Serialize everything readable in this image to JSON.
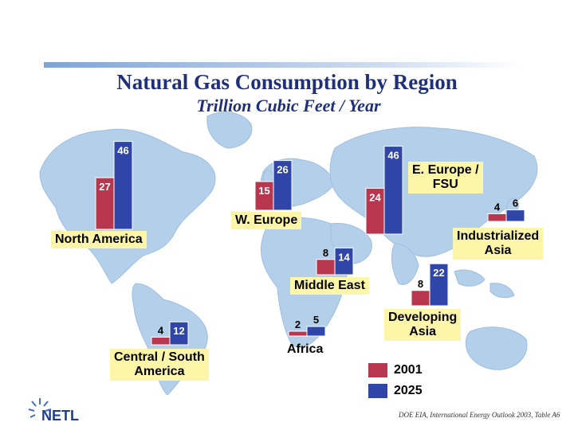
{
  "title": "Natural Gas Consumption by Region",
  "subtitle": "Trillion Cubic Feet / Year",
  "colors": {
    "y2001": "#b8374f",
    "y2025": "#2f45a8",
    "label_bg": "#fdf6a8",
    "title": "#1f2f7a",
    "map": "#b3cfea"
  },
  "chart_data": {
    "type": "bar",
    "title": "Natural Gas Consumption by Region",
    "subtitle": "Trillion Cubic Feet / Year",
    "series_names": [
      "2001",
      "2025"
    ],
    "regions": [
      {
        "label": "North America",
        "v2001": 27,
        "v2025": 46,
        "v2001_label": "27",
        "v2025_label": "46"
      },
      {
        "label": "W. Europe",
        "v2001": 15,
        "v2025": 26,
        "v2001_label": "15",
        "v2025_label": "26"
      },
      {
        "label": "E. Europe / FSU",
        "v2001": 24,
        "v2025": 46,
        "v2001_label": "24",
        "v2025_label": "46"
      },
      {
        "label": "Industrialized Asia",
        "v2001": 4,
        "v2025": 6,
        "v2001_label": "4",
        "v2025_label": "6"
      },
      {
        "label": "Middle East",
        "v2001": 8,
        "v2025": 14,
        "v2001_label": "8",
        "v2025_label": "14"
      },
      {
        "label": "Developing Asia",
        "v2001": 8,
        "v2025": 22,
        "v2001_label": "8",
        "v2025_label": "22"
      },
      {
        "label": "Central / South America",
        "v2001": 4,
        "v2025": 12,
        "v2001_label": "4",
        "v2025_label": "12"
      },
      {
        "label": "Africa",
        "v2001": 2,
        "v2025": 5,
        "v2001_label": "2",
        "v2025_label": "5"
      }
    ]
  },
  "labels": {
    "north_america": "North America",
    "w_europe": "W. Europe",
    "e_europe_line1": "E. Europe /",
    "e_europe_line2": "FSU",
    "ind_asia_line1": "Industrialized",
    "ind_asia_line2": "Asia",
    "middle_east": "Middle East",
    "dev_asia_line1": "Developing",
    "dev_asia_line2": "Asia",
    "csa_line1": "Central / South",
    "csa_line2": "America",
    "africa": "Africa"
  },
  "legend": {
    "item_2001": "2001",
    "item_2025": "2025"
  },
  "source": "DOE EIA, International Energy Outlook 2003, Table A6",
  "logo": {
    "text": "NETL"
  }
}
